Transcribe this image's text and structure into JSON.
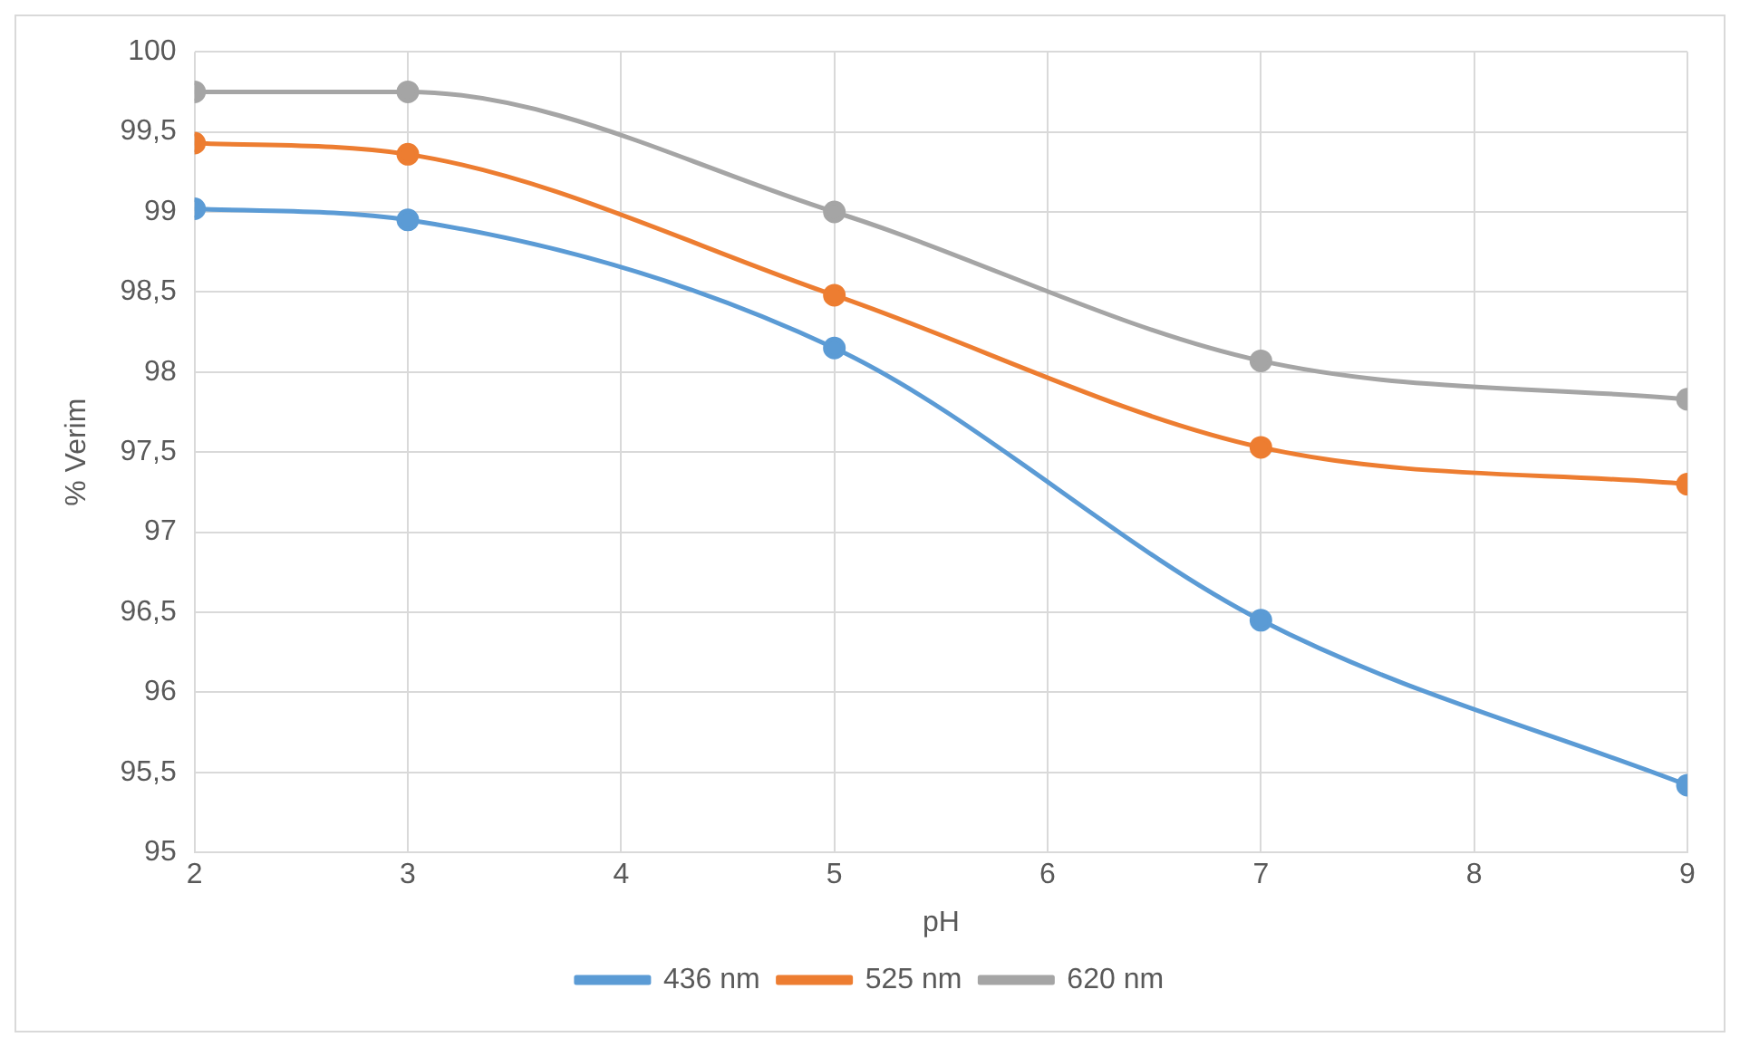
{
  "chart_data": {
    "type": "line",
    "xlabel": "pH",
    "ylabel": "% Verim",
    "x": [
      2,
      3,
      5,
      7,
      9
    ],
    "series": [
      {
        "name": "436 nm",
        "color": "#5b9bd5",
        "values": [
          99.02,
          98.95,
          98.15,
          96.45,
          95.42
        ]
      },
      {
        "name": "525 nm",
        "color": "#ed7d31",
        "values": [
          99.43,
          99.36,
          98.48,
          97.53,
          97.3
        ]
      },
      {
        "name": "620 nm",
        "color": "#a5a5a5",
        "values": [
          99.75,
          99.75,
          99.0,
          98.07,
          97.83
        ]
      }
    ],
    "xlim": [
      2,
      9
    ],
    "xticks": [
      2,
      3,
      4,
      5,
      6,
      7,
      8,
      9
    ],
    "ylim": [
      95,
      100
    ],
    "yticks": [
      95,
      {
        "value": 95.5,
        "label": "95,5"
      },
      96,
      {
        "value": 96.5,
        "label": "96,5"
      },
      97,
      {
        "value": 97.5,
        "label": "97,5"
      },
      98,
      {
        "value": 98.5,
        "label": "98,5"
      },
      99,
      {
        "value": 99.5,
        "label": "99,5"
      },
      100
    ],
    "grid": true,
    "legend": "bottom",
    "marker": "circle",
    "line_style": "solid"
  }
}
